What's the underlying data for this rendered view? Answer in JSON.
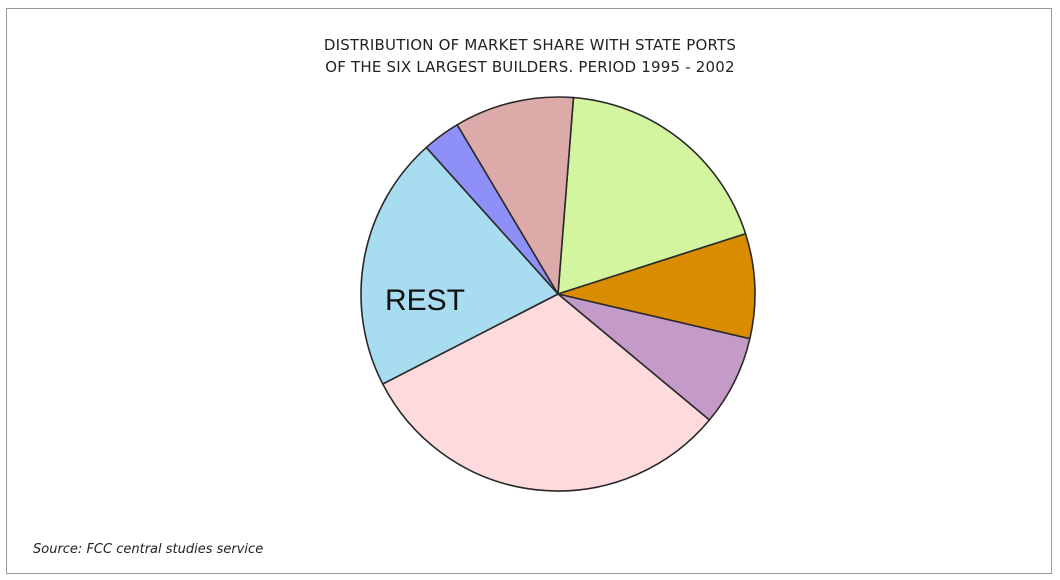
{
  "chart_data": {
    "type": "pie",
    "title_line1": "DISTRIBUTION OF MARKET SHARE WITH STATE PORTS",
    "title_line2": "OF THE SIX LARGEST BUILDERS. PERIOD 1995 - 2002",
    "source": "Source: FCC central studies service",
    "slices": [
      {
        "label": "",
        "percent": 18.8,
        "color": "#d4f5a0"
      },
      {
        "label": "",
        "percent": 8.6,
        "color": "#d98c00"
      },
      {
        "label": "",
        "percent": 7.4,
        "color": "#c39ac8"
      },
      {
        "label": "",
        "percent": 31.4,
        "color": "#fddadb"
      },
      {
        "label": "REST",
        "percent": 20.9,
        "color": "#a8dcf0"
      },
      {
        "label": "",
        "percent": 3.1,
        "color": "#8e8ff7"
      },
      {
        "label": "",
        "percent": 9.8,
        "color": "#dcaaa8"
      }
    ]
  }
}
